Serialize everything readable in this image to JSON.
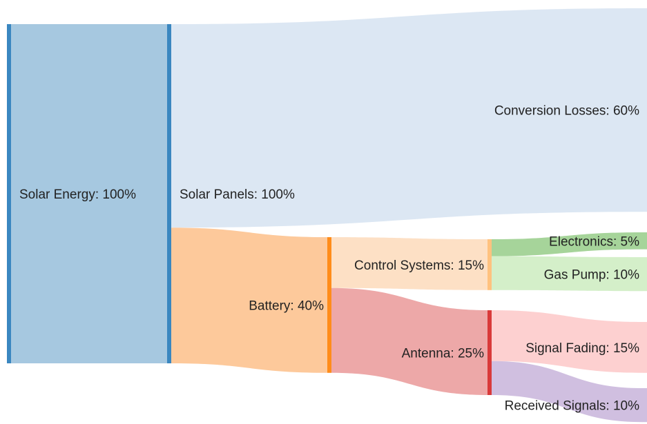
{
  "chart_data": {
    "type": "sankey",
    "nodes": [
      {
        "label": "Solar Energy: 100%",
        "value": 100,
        "color": "#3a87c0"
      },
      {
        "label": "Solar Panels: 100%",
        "value": 100,
        "color": "#3a87c0"
      },
      {
        "label": "Conversion Losses: 60%",
        "value": 60,
        "color": "#dce7f3"
      },
      {
        "label": "Battery: 40%",
        "value": 40,
        "color": "#ff8c1a"
      },
      {
        "label": "Control Systems: 15%",
        "value": 15,
        "color": "#ffc27f"
      },
      {
        "label": "Antenna: 25%",
        "value": 25,
        "color": "#d93a3a"
      },
      {
        "label": "Electronics: 5%",
        "value": 5,
        "color": "#a6d49a"
      },
      {
        "label": "Gas Pump: 10%",
        "value": 10,
        "color": "#d4efc9"
      },
      {
        "label": "Signal Fading: 15%",
        "value": 15,
        "color": "#fdd0d0"
      },
      {
        "label": "Received Signals: 10%",
        "value": 10,
        "color": "#d0bfe0"
      }
    ],
    "links": [
      {
        "source": 0,
        "target": 1,
        "value": 100,
        "color": "#a6c8e0"
      },
      {
        "source": 1,
        "target": 2,
        "value": 60,
        "color": "#dce7f3"
      },
      {
        "source": 1,
        "target": 3,
        "value": 40,
        "color": "#fdc99b"
      },
      {
        "source": 3,
        "target": 4,
        "value": 15,
        "color": "#fde0c5"
      },
      {
        "source": 3,
        "target": 5,
        "value": 25,
        "color": "#eda8a8"
      },
      {
        "source": 4,
        "target": 6,
        "value": 5,
        "color": "#a6d49a"
      },
      {
        "source": 4,
        "target": 7,
        "value": 10,
        "color": "#d4efc9"
      },
      {
        "source": 5,
        "target": 8,
        "value": 15,
        "color": "#fdd0d0"
      },
      {
        "source": 5,
        "target": 9,
        "value": 10,
        "color": "#d0bfe0"
      }
    ]
  }
}
